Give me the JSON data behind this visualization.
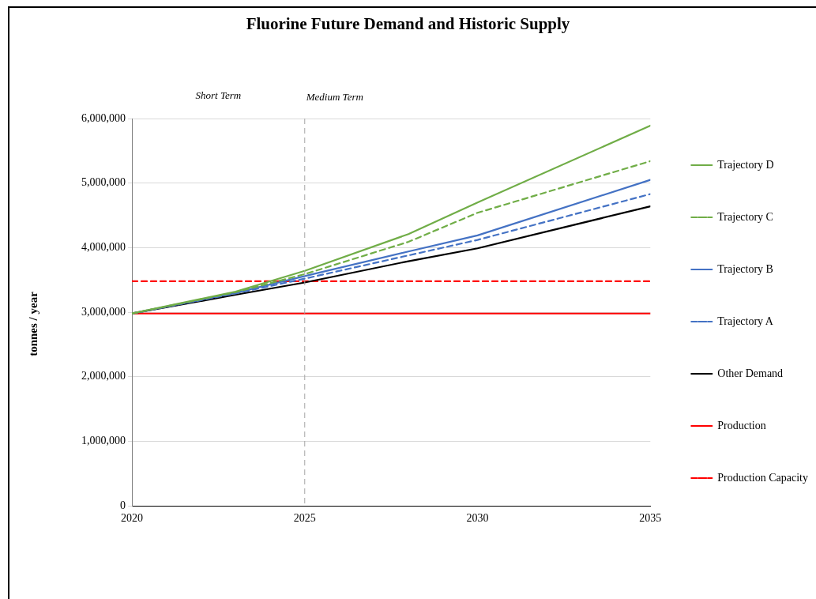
{
  "chart_data": {
    "type": "line",
    "title": "Fluorine Future Demand and Historic Supply",
    "ylabel": "tonnes / year",
    "xlim": [
      2020,
      2035
    ],
    "xticks": [
      2020,
      2025,
      2030,
      2035
    ],
    "ylim": [
      0,
      6000000
    ],
    "yticks": [
      0,
      {
        "value": 1000000,
        "label": "1,000,000"
      },
      {
        "value": 2000000,
        "label": "2,000,000"
      },
      {
        "value": 3000000,
        "label": "3,000,000"
      },
      {
        "value": 4000000,
        "label": "4,000,000"
      },
      {
        "value": 5000000,
        "label": "5,000,000"
      },
      {
        "value": 6000000,
        "label": "6,000,000"
      }
    ],
    "grid": "y",
    "legend": "right",
    "marker": "none",
    "x": [
      2020,
      2023,
      2025,
      2028,
      2030,
      2035
    ],
    "series": [
      {
        "name": "Trajectory D",
        "color": "#70ad47",
        "values": [
          2980000,
          3320000,
          3640000,
          4210000,
          4700000,
          5890000
        ]
      },
      {
        "name": "Trajectory C",
        "color": "#70ad47",
        "line_style": "dashed",
        "values": [
          2980000,
          3310000,
          3590000,
          4090000,
          4540000,
          5340000
        ]
      },
      {
        "name": "Trajectory B",
        "color": "#4472c4",
        "values": [
          2980000,
          3300000,
          3560000,
          3940000,
          4190000,
          5050000
        ]
      },
      {
        "name": "Trajectory A",
        "color": "#4472c4",
        "line_style": "dashed",
        "values": [
          2980000,
          3290000,
          3520000,
          3880000,
          4120000,
          4830000
        ]
      },
      {
        "name": "Other Demand",
        "color": "#000000",
        "values": [
          2980000,
          3270000,
          3460000,
          3790000,
          3990000,
          4640000
        ]
      },
      {
        "name": "Production",
        "color": "#ff0000",
        "values": [
          2980000,
          2980000,
          2980000,
          2980000,
          2980000,
          2980000
        ]
      },
      {
        "name": "Production Capacity",
        "color": "#ff0000",
        "line_style": "dashed",
        "values": [
          3480000,
          3480000,
          3480000,
          3480000,
          3480000,
          3480000
        ]
      }
    ],
    "ref_lines": [
      {
        "axis": "x",
        "value": 2025,
        "label": "Medium Term",
        "color": "#a6a6a6",
        "line_style": "dashed"
      }
    ],
    "annotations": [
      "Short Term"
    ]
  }
}
